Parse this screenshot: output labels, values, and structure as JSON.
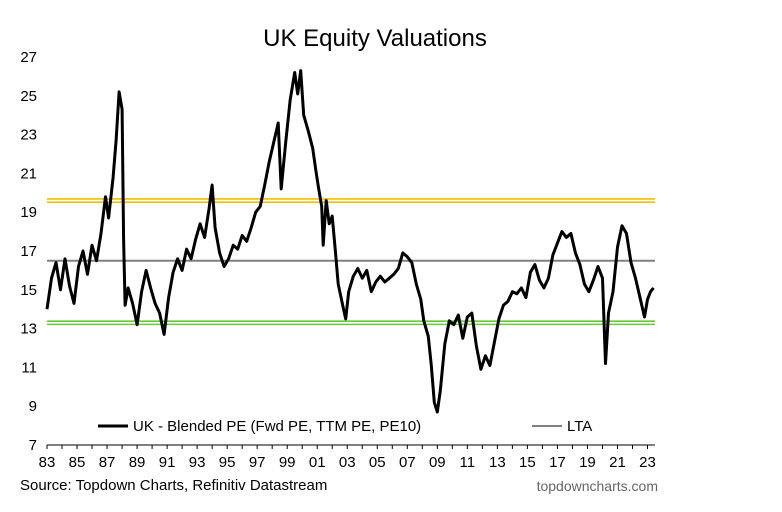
{
  "chart_data": {
    "type": "line",
    "title": "UK Equity Valuations",
    "ylim": [
      7,
      27
    ],
    "yticks": [
      7,
      9,
      11,
      13,
      15,
      17,
      19,
      21,
      23,
      25,
      27
    ],
    "xlim": [
      1983.0,
      2023.5
    ],
    "xticks": [
      {
        "year": 1983,
        "label": "83"
      },
      {
        "year": 1985,
        "label": "85"
      },
      {
        "year": 1987,
        "label": "87"
      },
      {
        "year": 1989,
        "label": "89"
      },
      {
        "year": 1991,
        "label": "91"
      },
      {
        "year": 1993,
        "label": "93"
      },
      {
        "year": 1995,
        "label": "95"
      },
      {
        "year": 1997,
        "label": "97"
      },
      {
        "year": 1999,
        "label": "99"
      },
      {
        "year": 2001,
        "label": "01"
      },
      {
        "year": 2003,
        "label": "03"
      },
      {
        "year": 2005,
        "label": "05"
      },
      {
        "year": 2007,
        "label": "07"
      },
      {
        "year": 2009,
        "label": "09"
      },
      {
        "year": 2011,
        "label": "11"
      },
      {
        "year": 2013,
        "label": "13"
      },
      {
        "year": 2015,
        "label": "15"
      },
      {
        "year": 2017,
        "label": "17"
      },
      {
        "year": 2019,
        "label": "19"
      },
      {
        "year": 2021,
        "label": "21"
      },
      {
        "year": 2023,
        "label": "23"
      }
    ],
    "series": [
      {
        "name": "UK - Blended PE (Fwd PE, TTM PE, PE10)",
        "color": "#000000",
        "points": [
          [
            1983.0,
            14.0
          ],
          [
            1983.3,
            15.6
          ],
          [
            1983.6,
            16.4
          ],
          [
            1983.9,
            15.0
          ],
          [
            1984.2,
            16.6
          ],
          [
            1984.5,
            15.2
          ],
          [
            1984.8,
            14.3
          ],
          [
            1985.1,
            16.2
          ],
          [
            1985.4,
            17.0
          ],
          [
            1985.7,
            15.8
          ],
          [
            1986.0,
            17.3
          ],
          [
            1986.3,
            16.5
          ],
          [
            1986.6,
            17.9
          ],
          [
            1986.9,
            19.8
          ],
          [
            1987.1,
            18.7
          ],
          [
            1987.4,
            20.8
          ],
          [
            1987.6,
            22.7
          ],
          [
            1987.8,
            25.2
          ],
          [
            1988.0,
            24.3
          ],
          [
            1988.1,
            17.6
          ],
          [
            1988.2,
            14.2
          ],
          [
            1988.4,
            15.1
          ],
          [
            1988.7,
            14.3
          ],
          [
            1989.0,
            13.2
          ],
          [
            1989.3,
            14.9
          ],
          [
            1989.6,
            16.0
          ],
          [
            1989.9,
            15.1
          ],
          [
            1990.2,
            14.3
          ],
          [
            1990.5,
            13.8
          ],
          [
            1990.8,
            12.7
          ],
          [
            1991.1,
            14.6
          ],
          [
            1991.4,
            15.9
          ],
          [
            1991.7,
            16.6
          ],
          [
            1992.0,
            16.0
          ],
          [
            1992.3,
            17.1
          ],
          [
            1992.6,
            16.6
          ],
          [
            1992.9,
            17.6
          ],
          [
            1993.2,
            18.4
          ],
          [
            1993.5,
            17.7
          ],
          [
            1993.8,
            19.2
          ],
          [
            1994.0,
            20.4
          ],
          [
            1994.2,
            18.2
          ],
          [
            1994.5,
            16.9
          ],
          [
            1994.8,
            16.2
          ],
          [
            1995.1,
            16.6
          ],
          [
            1995.4,
            17.3
          ],
          [
            1995.7,
            17.1
          ],
          [
            1996.0,
            17.8
          ],
          [
            1996.3,
            17.5
          ],
          [
            1996.6,
            18.2
          ],
          [
            1996.9,
            19.0
          ],
          [
            1997.2,
            19.3
          ],
          [
            1997.5,
            20.4
          ],
          [
            1997.8,
            21.6
          ],
          [
            1998.1,
            22.6
          ],
          [
            1998.4,
            23.6
          ],
          [
            1998.6,
            20.2
          ],
          [
            1998.9,
            22.6
          ],
          [
            1999.2,
            24.8
          ],
          [
            1999.5,
            26.2
          ],
          [
            1999.7,
            25.1
          ],
          [
            1999.9,
            26.3
          ],
          [
            2000.1,
            24.0
          ],
          [
            2000.4,
            23.2
          ],
          [
            2000.7,
            22.3
          ],
          [
            2000.9,
            21.2
          ],
          [
            2001.1,
            20.2
          ],
          [
            2001.3,
            19.3
          ],
          [
            2001.4,
            17.3
          ],
          [
            2001.6,
            19.6
          ],
          [
            2001.8,
            18.4
          ],
          [
            2002.0,
            18.8
          ],
          [
            2002.2,
            17.1
          ],
          [
            2002.4,
            15.3
          ],
          [
            2002.7,
            14.2
          ],
          [
            2002.9,
            13.5
          ],
          [
            2003.1,
            14.9
          ],
          [
            2003.4,
            15.7
          ],
          [
            2003.7,
            16.1
          ],
          [
            2004.0,
            15.6
          ],
          [
            2004.3,
            16.0
          ],
          [
            2004.6,
            14.9
          ],
          [
            2004.9,
            15.4
          ],
          [
            2005.2,
            15.7
          ],
          [
            2005.5,
            15.4
          ],
          [
            2005.8,
            15.6
          ],
          [
            2006.1,
            15.8
          ],
          [
            2006.4,
            16.1
          ],
          [
            2006.7,
            16.9
          ],
          [
            2007.0,
            16.7
          ],
          [
            2007.3,
            16.4
          ],
          [
            2007.6,
            15.3
          ],
          [
            2007.9,
            14.5
          ],
          [
            2008.1,
            13.4
          ],
          [
            2008.4,
            12.6
          ],
          [
            2008.6,
            11.1
          ],
          [
            2008.8,
            9.2
          ],
          [
            2009.0,
            8.7
          ],
          [
            2009.2,
            9.8
          ],
          [
            2009.5,
            12.2
          ],
          [
            2009.8,
            13.4
          ],
          [
            2010.1,
            13.2
          ],
          [
            2010.4,
            13.7
          ],
          [
            2010.7,
            12.5
          ],
          [
            2011.0,
            13.6
          ],
          [
            2011.3,
            13.8
          ],
          [
            2011.6,
            12.1
          ],
          [
            2011.9,
            10.9
          ],
          [
            2012.2,
            11.6
          ],
          [
            2012.5,
            11.1
          ],
          [
            2012.8,
            12.3
          ],
          [
            2013.1,
            13.5
          ],
          [
            2013.4,
            14.2
          ],
          [
            2013.7,
            14.4
          ],
          [
            2014.0,
            14.9
          ],
          [
            2014.3,
            14.8
          ],
          [
            2014.6,
            15.1
          ],
          [
            2014.9,
            14.6
          ],
          [
            2015.2,
            15.9
          ],
          [
            2015.5,
            16.3
          ],
          [
            2015.8,
            15.5
          ],
          [
            2016.1,
            15.1
          ],
          [
            2016.4,
            15.6
          ],
          [
            2016.7,
            16.8
          ],
          [
            2017.0,
            17.4
          ],
          [
            2017.3,
            18.0
          ],
          [
            2017.6,
            17.7
          ],
          [
            2017.9,
            17.9
          ],
          [
            2018.2,
            16.9
          ],
          [
            2018.5,
            16.3
          ],
          [
            2018.8,
            15.3
          ],
          [
            2019.1,
            14.9
          ],
          [
            2019.4,
            15.5
          ],
          [
            2019.7,
            16.2
          ],
          [
            2020.0,
            15.6
          ],
          [
            2020.2,
            11.2
          ],
          [
            2020.4,
            13.8
          ],
          [
            2020.7,
            14.9
          ],
          [
            2021.0,
            17.2
          ],
          [
            2021.3,
            18.3
          ],
          [
            2021.6,
            17.9
          ],
          [
            2021.9,
            16.4
          ],
          [
            2022.2,
            15.6
          ],
          [
            2022.5,
            14.6
          ],
          [
            2022.8,
            13.6
          ],
          [
            2023.0,
            14.5
          ],
          [
            2023.2,
            14.9
          ],
          [
            2023.4,
            15.1
          ]
        ]
      },
      {
        "name": "LTA",
        "color": "#808080",
        "value": 16.5
      }
    ],
    "reference_lines": [
      {
        "value": 19.6,
        "color": "#f0c000"
      },
      {
        "value": 13.3,
        "color": "#66cc33"
      }
    ]
  },
  "footer": {
    "source": "Source: Topdown Charts, Refinitiv Datastream",
    "brand": "topdowncharts.com"
  }
}
